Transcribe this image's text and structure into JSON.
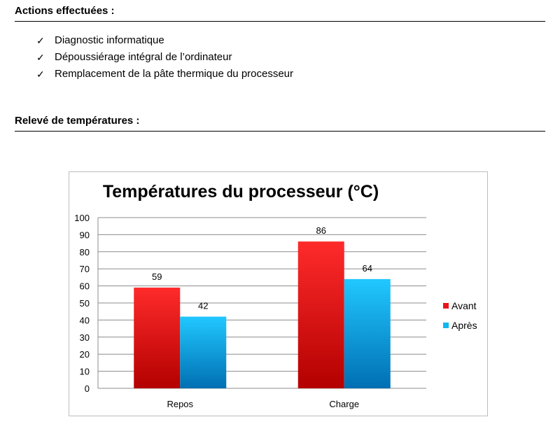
{
  "sections": {
    "actions_title": "Actions effectuées :",
    "temps_title": "Relevé de températures :"
  },
  "actions": {
    "check_glyph": "✓",
    "items": [
      "Diagnostic informatique",
      "Dépoussiérage intégral de l’ordinateur",
      "Remplacement de la pâte thermique du processeur"
    ]
  },
  "chart_data": {
    "type": "bar",
    "title": "Températures du processeur (°C)",
    "xlabel": "",
    "ylabel": "",
    "categories": [
      "Repos",
      "Charge"
    ],
    "series": [
      {
        "name": "Avant",
        "values": [
          59,
          86
        ],
        "color": "#e8161b"
      },
      {
        "name": "Après",
        "values": [
          42,
          64
        ],
        "color": "#13b6ee"
      }
    ],
    "ylim": [
      0,
      100
    ],
    "yticks": [
      0,
      10,
      20,
      30,
      40,
      50,
      60,
      70,
      80,
      90,
      100
    ],
    "grid": true,
    "legend_position": "right",
    "data_labels": true
  }
}
